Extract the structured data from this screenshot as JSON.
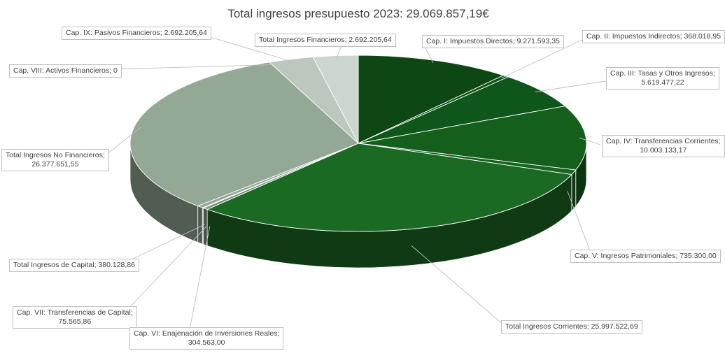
{
  "chart_data": {
    "type": "pie",
    "title": "Total ingresos presupuesto 2023: 29.069.857,19€",
    "slices": [
      {
        "name": "Cap. I: Impuestos Directos",
        "value": 9271593.35,
        "label": "9.271.593,35",
        "color": "#0c4714"
      },
      {
        "name": "Cap. II: Impuestos Indirectos",
        "value": 368018.95,
        "label": "368.018,95",
        "color": "#0e5117"
      },
      {
        "name": "Cap. III: Tasas y Otros Ingresos",
        "value": 5619477.22,
        "label": "5.619.477,22",
        "color": "#0f561a"
      },
      {
        "name": "Cap. IV: Transferencias Corrientes",
        "value": 10003133.17,
        "label": "10.003.133,17",
        "color": "#155f1d"
      },
      {
        "name": "Cap. V: Ingresos Patrimoniales",
        "value": 735300.0,
        "label": "735.300,00",
        "color": "#166521"
      },
      {
        "name": "Total Ingresos Corrientes",
        "value": 25997522.69,
        "label": "25.997.522,69",
        "color": "#1b6a24"
      },
      {
        "name": "Cap. VI: Enajenación de Inversiones Reales",
        "value": 304563.0,
        "label": "304.563,00",
        "color": "#7f9582"
      },
      {
        "name": "Cap. VII: Transferencias de Capital",
        "value": 75565.86,
        "label": "75.565,86",
        "color": "#8aa08d"
      },
      {
        "name": "Total Ingresos de Capital",
        "value": 380128.86,
        "label": "380.128,86",
        "color": "#91a794"
      },
      {
        "name": "Total Ingresos No Financieros",
        "value": 26377651.55,
        "label": "26.377.651,55",
        "color": "#93a895"
      },
      {
        "name": "Cap. VIII: Activos Financieros",
        "value": 0,
        "label": "0",
        "color": "#a6b8a8"
      },
      {
        "name": "Cap. IX: Pasivos Financieros",
        "value": 2692205.64,
        "label": "2.692.205,64",
        "color": "#bcc8bd"
      },
      {
        "name": "Total Ingresos Financieros",
        "value": 2692205.64,
        "label": "2.692.205,64",
        "color": "#cdd6ce"
      }
    ]
  }
}
